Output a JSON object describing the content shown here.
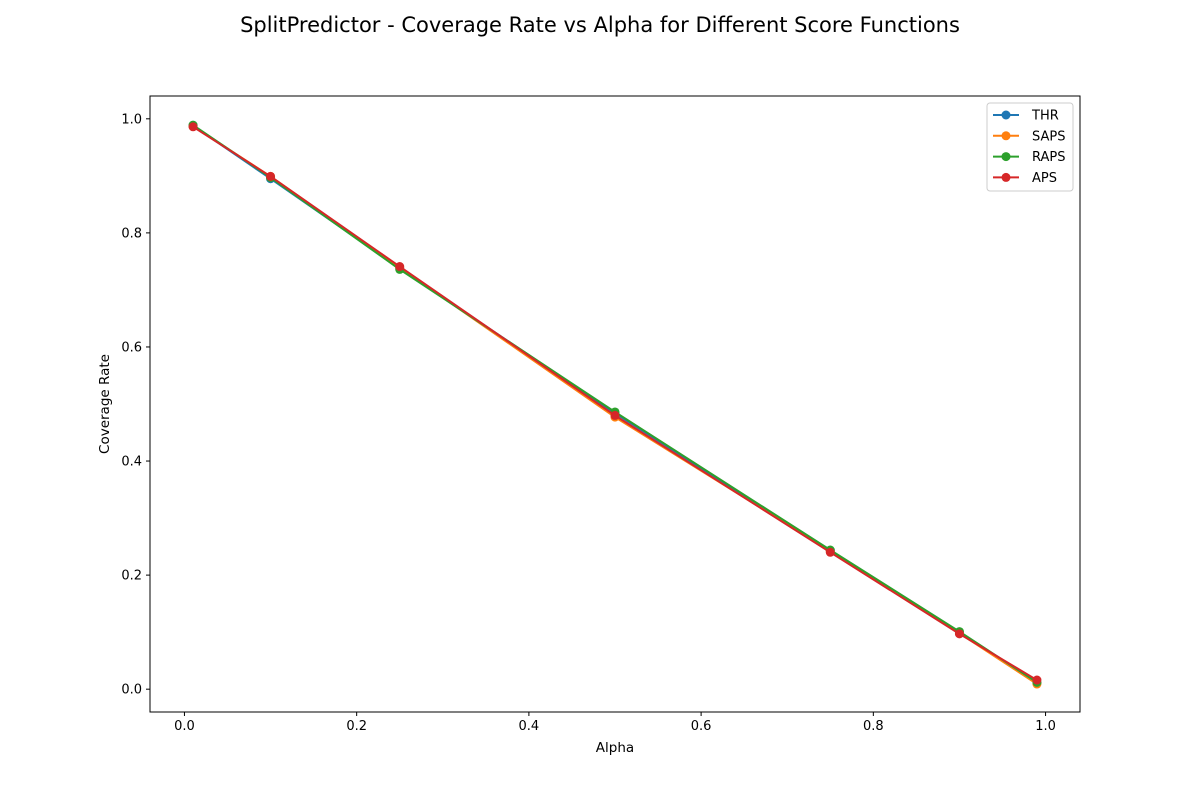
{
  "chart_data": {
    "type": "line",
    "title": "SplitPredictor - Coverage Rate vs Alpha for Different Score Functions",
    "xlabel": "Alpha",
    "ylabel": "Coverage Rate",
    "xlim": [
      -0.04,
      1.04
    ],
    "ylim": [
      -0.04,
      1.04
    ],
    "x_ticks": [
      0.0,
      0.2,
      0.4,
      0.6,
      0.8,
      1.0
    ],
    "x_tick_labels": [
      "0.0",
      "0.2",
      "0.4",
      "0.6",
      "0.8",
      "1.0"
    ],
    "y_ticks": [
      0.0,
      0.2,
      0.4,
      0.6,
      0.8,
      1.0
    ],
    "y_tick_labels": [
      "0.0",
      "0.2",
      "0.4",
      "0.6",
      "0.8",
      "1.0"
    ],
    "grid": false,
    "legend_position": "top-right",
    "marker": "circle",
    "x": [
      0.01,
      0.1,
      0.25,
      0.5,
      0.75,
      0.9,
      0.99
    ],
    "series": [
      {
        "name": "THR",
        "color": "#1f77b4",
        "values": [
          0.988,
          0.895,
          0.738,
          0.484,
          0.243,
          0.099,
          0.011
        ]
      },
      {
        "name": "SAPS",
        "color": "#ff7f0e",
        "values": [
          0.987,
          0.899,
          0.739,
          0.477,
          0.242,
          0.098,
          0.009
        ]
      },
      {
        "name": "RAPS",
        "color": "#2ca02c",
        "values": [
          0.989,
          0.897,
          0.736,
          0.486,
          0.244,
          0.101,
          0.012
        ]
      },
      {
        "name": "APS",
        "color": "#d62728",
        "values": [
          0.986,
          0.899,
          0.741,
          0.48,
          0.24,
          0.097,
          0.016
        ]
      }
    ]
  }
}
